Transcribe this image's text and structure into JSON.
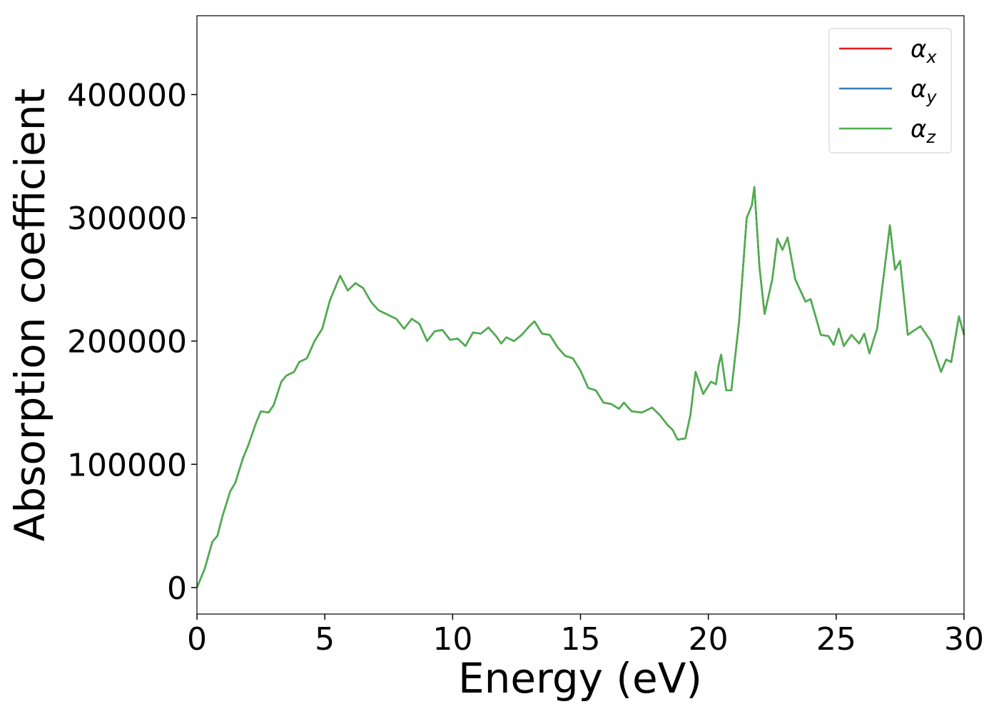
{
  "chart_data": {
    "type": "line",
    "xlabel": "Energy (eV)",
    "ylabel": "Absorption coefficient",
    "x": [
      0,
      0.3,
      0.6,
      0.8,
      1.0,
      1.3,
      1.5,
      1.8,
      2.0,
      2.3,
      2.5,
      2.8,
      3.0,
      3.3,
      3.5,
      3.8,
      4.0,
      4.3,
      4.6,
      4.9,
      5.2,
      5.6,
      5.9,
      6.2,
      6.5,
      6.8,
      7.1,
      7.4,
      7.8,
      8.1,
      8.4,
      8.7,
      9.0,
      9.3,
      9.6,
      9.9,
      10.2,
      10.5,
      10.8,
      11.1,
      11.4,
      11.7,
      11.9,
      12.1,
      12.4,
      12.7,
      13.0,
      13.2,
      13.5,
      13.8,
      14.1,
      14.4,
      14.7,
      15.0,
      15.3,
      15.6,
      15.9,
      16.2,
      16.5,
      16.7,
      17.0,
      17.4,
      17.8,
      18.1,
      18.4,
      18.6,
      18.8,
      19.1,
      19.3,
      19.5,
      19.8,
      20.1,
      20.3,
      20.4,
      20.5,
      20.7,
      20.9,
      21.2,
      21.5,
      21.7,
      21.8,
      22.0,
      22.2,
      22.5,
      22.7,
      22.9,
      23.1,
      23.4,
      23.8,
      24.0,
      24.4,
      24.7,
      24.9,
      25.1,
      25.3,
      25.6,
      25.9,
      26.1,
      26.3,
      26.6,
      26.9,
      27.1,
      27.3,
      27.5,
      27.8,
      28.0,
      28.3,
      28.7,
      29.1,
      29.3,
      29.5,
      29.8,
      30.0
    ],
    "series": [
      {
        "name": "αx",
        "color": "#e41a1c",
        "values": [
          0,
          15000,
          37000,
          42000,
          58000,
          78000,
          85000,
          105000,
          115000,
          133000,
          143000,
          142000,
          148000,
          167000,
          172000,
          175000,
          183000,
          186000,
          200000,
          210000,
          233000,
          253000,
          241000,
          247000,
          243000,
          232000,
          225000,
          222000,
          218000,
          210000,
          218000,
          214000,
          200000,
          208000,
          209000,
          201000,
          202000,
          196000,
          207000,
          206000,
          211000,
          204000,
          198000,
          203000,
          200000,
          205000,
          212000,
          216000,
          206000,
          205000,
          195000,
          188000,
          186000,
          176000,
          162000,
          160000,
          150000,
          149000,
          145000,
          150000,
          143000,
          142000,
          146000,
          140000,
          132000,
          128000,
          120000,
          121000,
          140000,
          175000,
          157000,
          167000,
          165000,
          180000,
          189000,
          160000,
          160000,
          215000,
          300000,
          310000,
          325000,
          260000,
          222000,
          250000,
          283000,
          274000,
          284000,
          250000,
          232000,
          234000,
          205000,
          204000,
          197000,
          210000,
          196000,
          205000,
          198000,
          206000,
          190000,
          210000,
          260000,
          294000,
          258000,
          265000,
          205000,
          208000,
          212000,
          200000,
          175000,
          185000,
          183000,
          220000,
          205000
        ]
      },
      {
        "name": "αy",
        "color": "#377eb8",
        "values": [
          0,
          15000,
          37000,
          42000,
          58000,
          78000,
          85000,
          105000,
          115000,
          133000,
          143000,
          142000,
          148000,
          167000,
          172000,
          175000,
          183000,
          186000,
          200000,
          210000,
          233000,
          253000,
          241000,
          247000,
          243000,
          232000,
          225000,
          222000,
          218000,
          210000,
          218000,
          214000,
          200000,
          208000,
          209000,
          201000,
          202000,
          196000,
          207000,
          206000,
          211000,
          204000,
          198000,
          203000,
          200000,
          205000,
          212000,
          216000,
          206000,
          205000,
          195000,
          188000,
          186000,
          176000,
          162000,
          160000,
          150000,
          149000,
          145000,
          150000,
          143000,
          142000,
          146000,
          140000,
          132000,
          128000,
          120000,
          121000,
          140000,
          175000,
          157000,
          167000,
          165000,
          180000,
          189000,
          160000,
          160000,
          215000,
          300000,
          310000,
          325000,
          260000,
          222000,
          250000,
          283000,
          274000,
          284000,
          250000,
          232000,
          234000,
          205000,
          204000,
          197000,
          210000,
          196000,
          205000,
          198000,
          206000,
          190000,
          210000,
          260000,
          294000,
          258000,
          265000,
          205000,
          208000,
          212000,
          200000,
          175000,
          185000,
          183000,
          220000,
          205000
        ]
      },
      {
        "name": "αz",
        "color": "#4daf4a",
        "values": [
          0,
          15000,
          37000,
          42000,
          58000,
          78000,
          85000,
          105000,
          115000,
          133000,
          143000,
          142000,
          148000,
          167000,
          172000,
          175000,
          183000,
          186000,
          200000,
          210000,
          233000,
          253000,
          241000,
          247000,
          243000,
          232000,
          225000,
          222000,
          218000,
          210000,
          218000,
          214000,
          200000,
          208000,
          209000,
          201000,
          202000,
          196000,
          207000,
          206000,
          211000,
          204000,
          198000,
          203000,
          200000,
          205000,
          212000,
          216000,
          206000,
          205000,
          195000,
          188000,
          186000,
          176000,
          162000,
          160000,
          150000,
          149000,
          145000,
          150000,
          143000,
          142000,
          146000,
          140000,
          132000,
          128000,
          120000,
          121000,
          140000,
          175000,
          157000,
          167000,
          165000,
          180000,
          189000,
          160000,
          160000,
          215000,
          300000,
          310000,
          325000,
          260000,
          222000,
          250000,
          283000,
          274000,
          284000,
          250000,
          232000,
          234000,
          205000,
          204000,
          197000,
          210000,
          196000,
          205000,
          198000,
          206000,
          190000,
          210000,
          260000,
          294000,
          258000,
          265000,
          205000,
          208000,
          212000,
          200000,
          175000,
          185000,
          183000,
          220000,
          205000
        ]
      }
    ],
    "xlim": [
      0,
      30
    ],
    "xticks": [
      0,
      5,
      10,
      15,
      20,
      25,
      30
    ],
    "ylim": [
      -21500,
      464000
    ],
    "yticks": [
      0,
      100000,
      200000,
      300000,
      400000
    ],
    "legend": "upper right"
  }
}
